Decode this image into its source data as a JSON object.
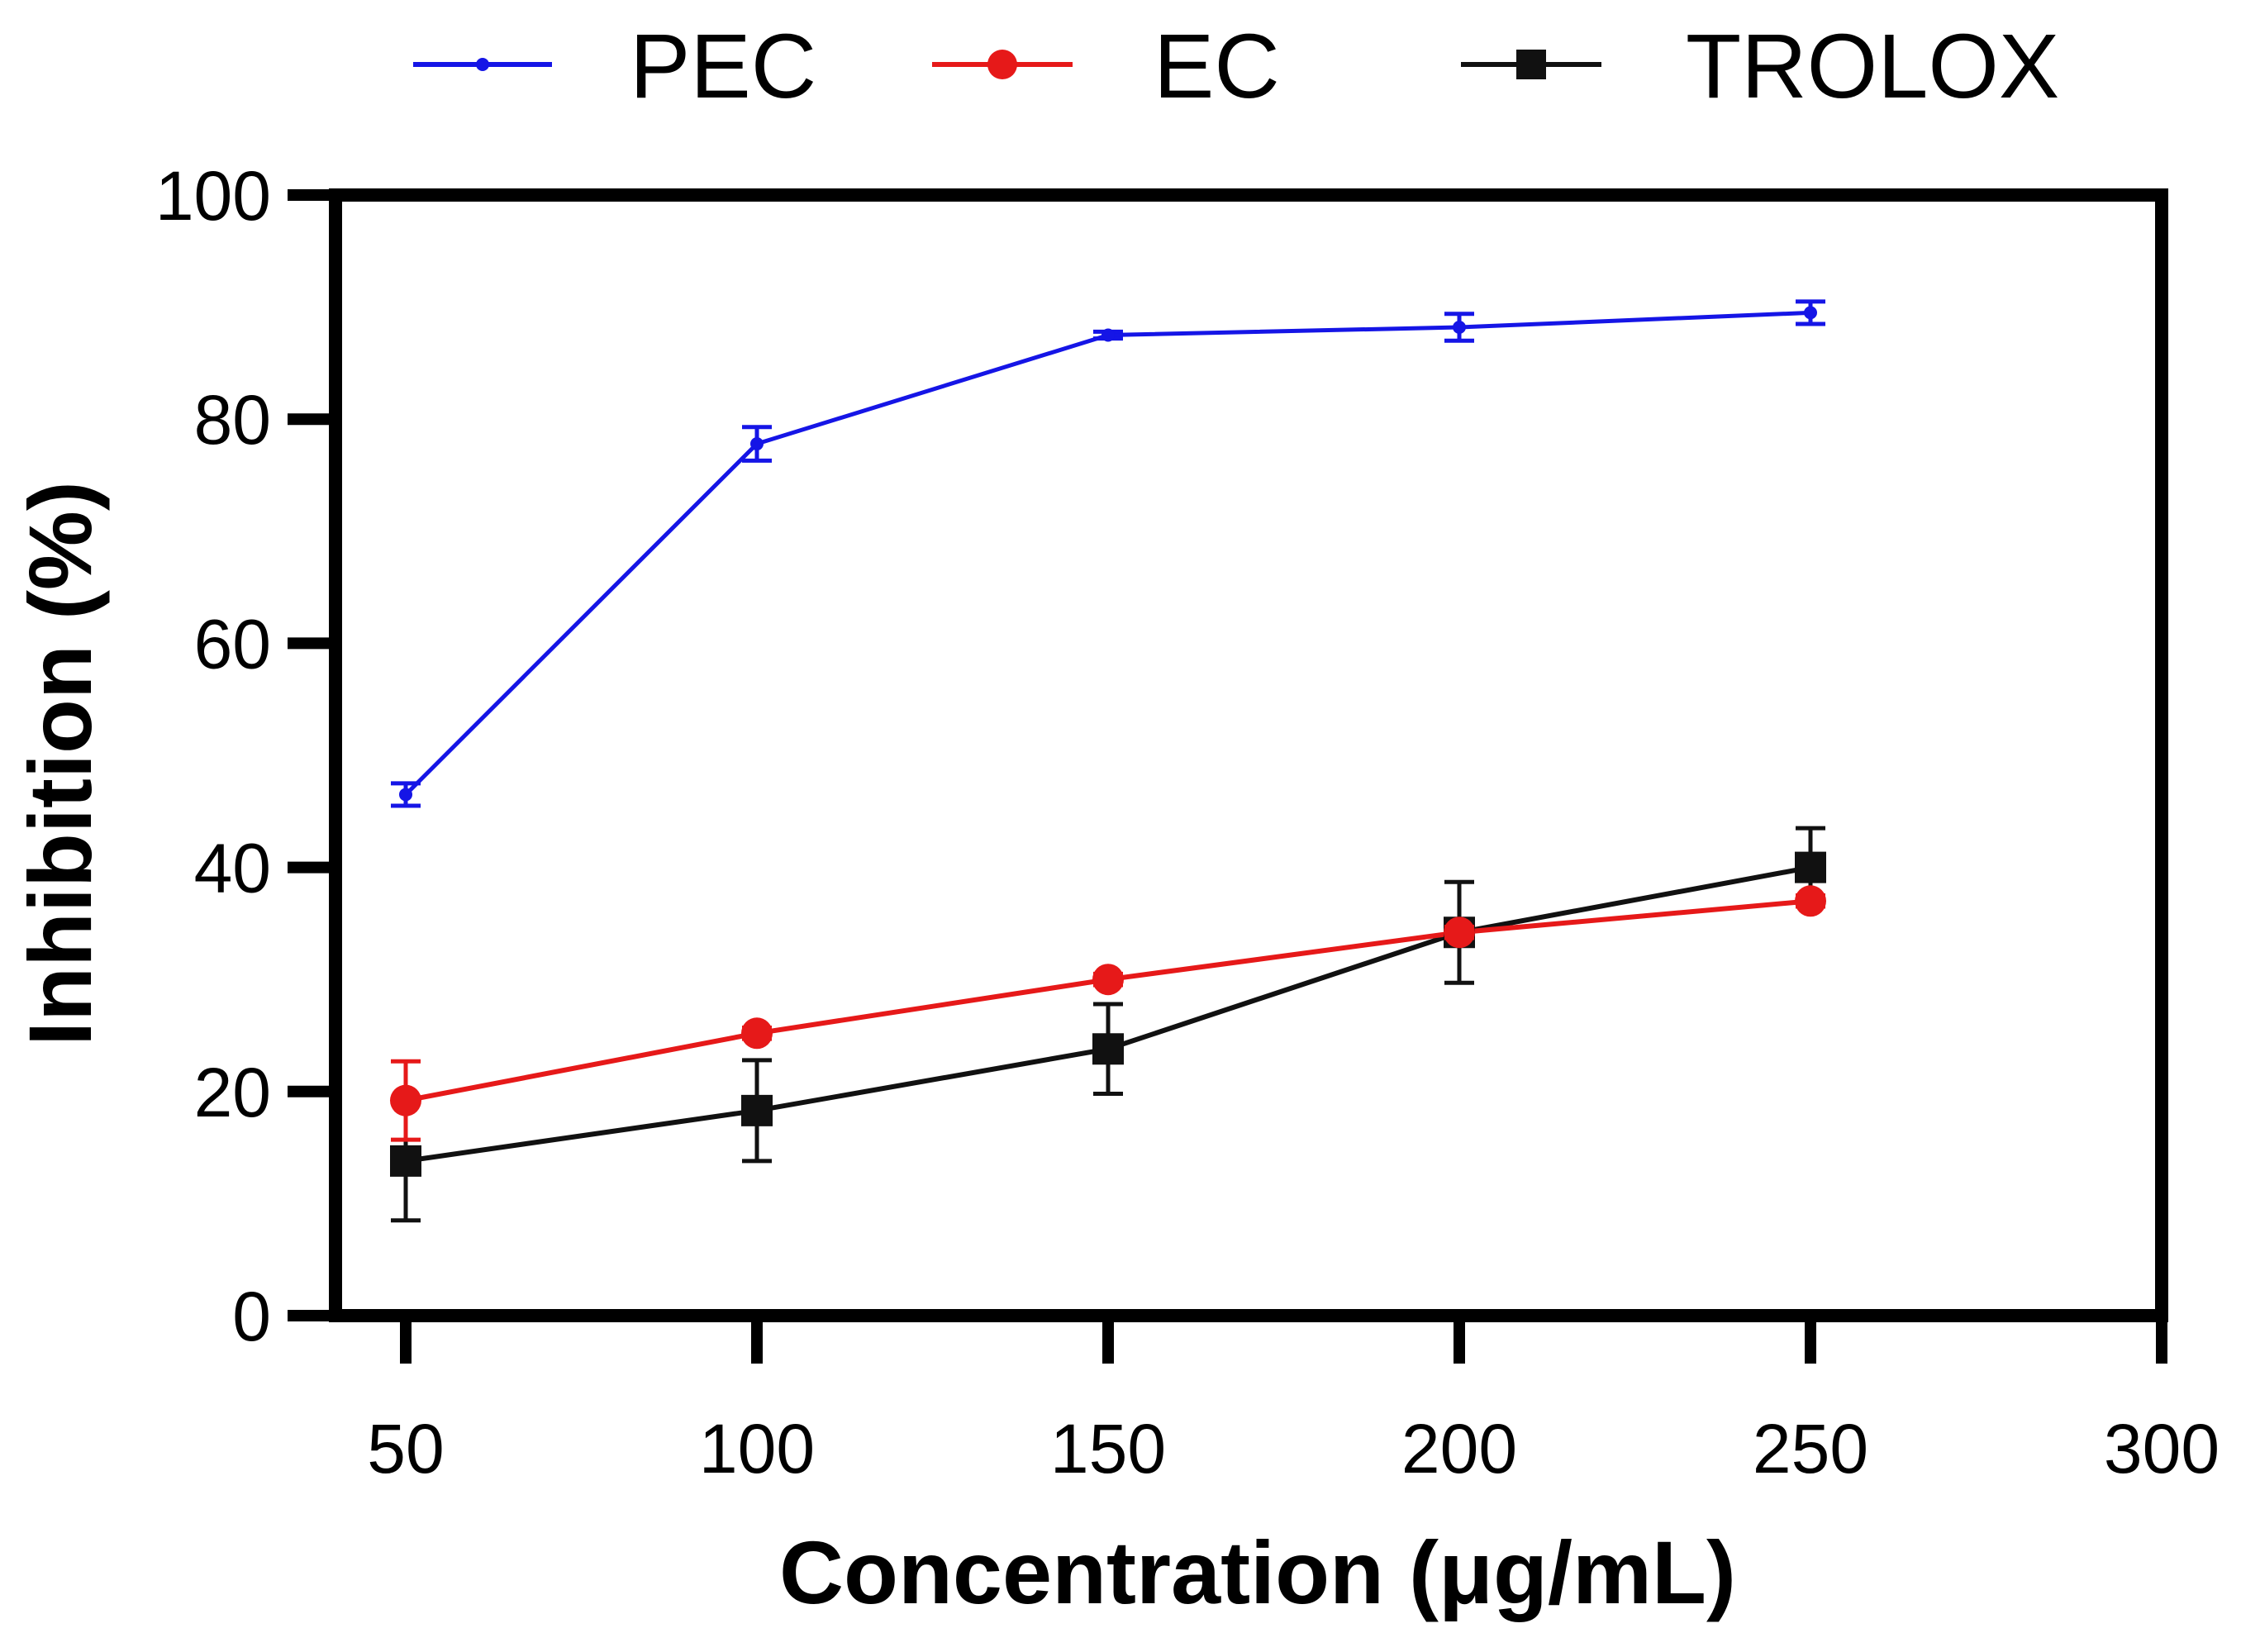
{
  "chart_data": {
    "type": "line",
    "title": "",
    "xlabel": "Concentration (μg/mL)",
    "ylabel": "Inhibition (%)",
    "xlim": [
      40,
      300
    ],
    "ylim": [
      0,
      100
    ],
    "x_ticks": [
      50,
      100,
      150,
      200,
      250,
      300
    ],
    "y_ticks": [
      0,
      20,
      40,
      60,
      80,
      100
    ],
    "x_tick_labels": [
      "50",
      "100",
      "150",
      "200",
      "250",
      "300"
    ],
    "y_tick_labels": [
      "0",
      "20",
      "40",
      "60",
      "80",
      "100"
    ],
    "grid": false,
    "legend_position": "top",
    "series": [
      {
        "name": "PEC",
        "color": "#1515e6",
        "marker": "small-circle",
        "x": [
          50,
          100,
          150,
          200,
          250
        ],
        "values": [
          46.5,
          77.8,
          87.5,
          88.2,
          89.5
        ],
        "errors": [
          1.0,
          1.5,
          0.3,
          1.2,
          1.0
        ]
      },
      {
        "name": "EC",
        "color": "#e61919",
        "marker": "circle",
        "x": [
          50,
          100,
          150,
          200,
          250
        ],
        "values": [
          19.2,
          25.2,
          30.0,
          34.2,
          37.0
        ],
        "errors": [
          3.5,
          0.5,
          0.5,
          0.5,
          0.5
        ]
      },
      {
        "name": "TROLOX",
        "color": "#111111",
        "marker": "square",
        "x": [
          50,
          100,
          150,
          200,
          250
        ],
        "values": [
          13.8,
          18.3,
          23.8,
          34.2,
          40.0
        ],
        "errors": [
          5.3,
          4.5,
          4.0,
          4.5,
          3.5
        ]
      }
    ]
  }
}
